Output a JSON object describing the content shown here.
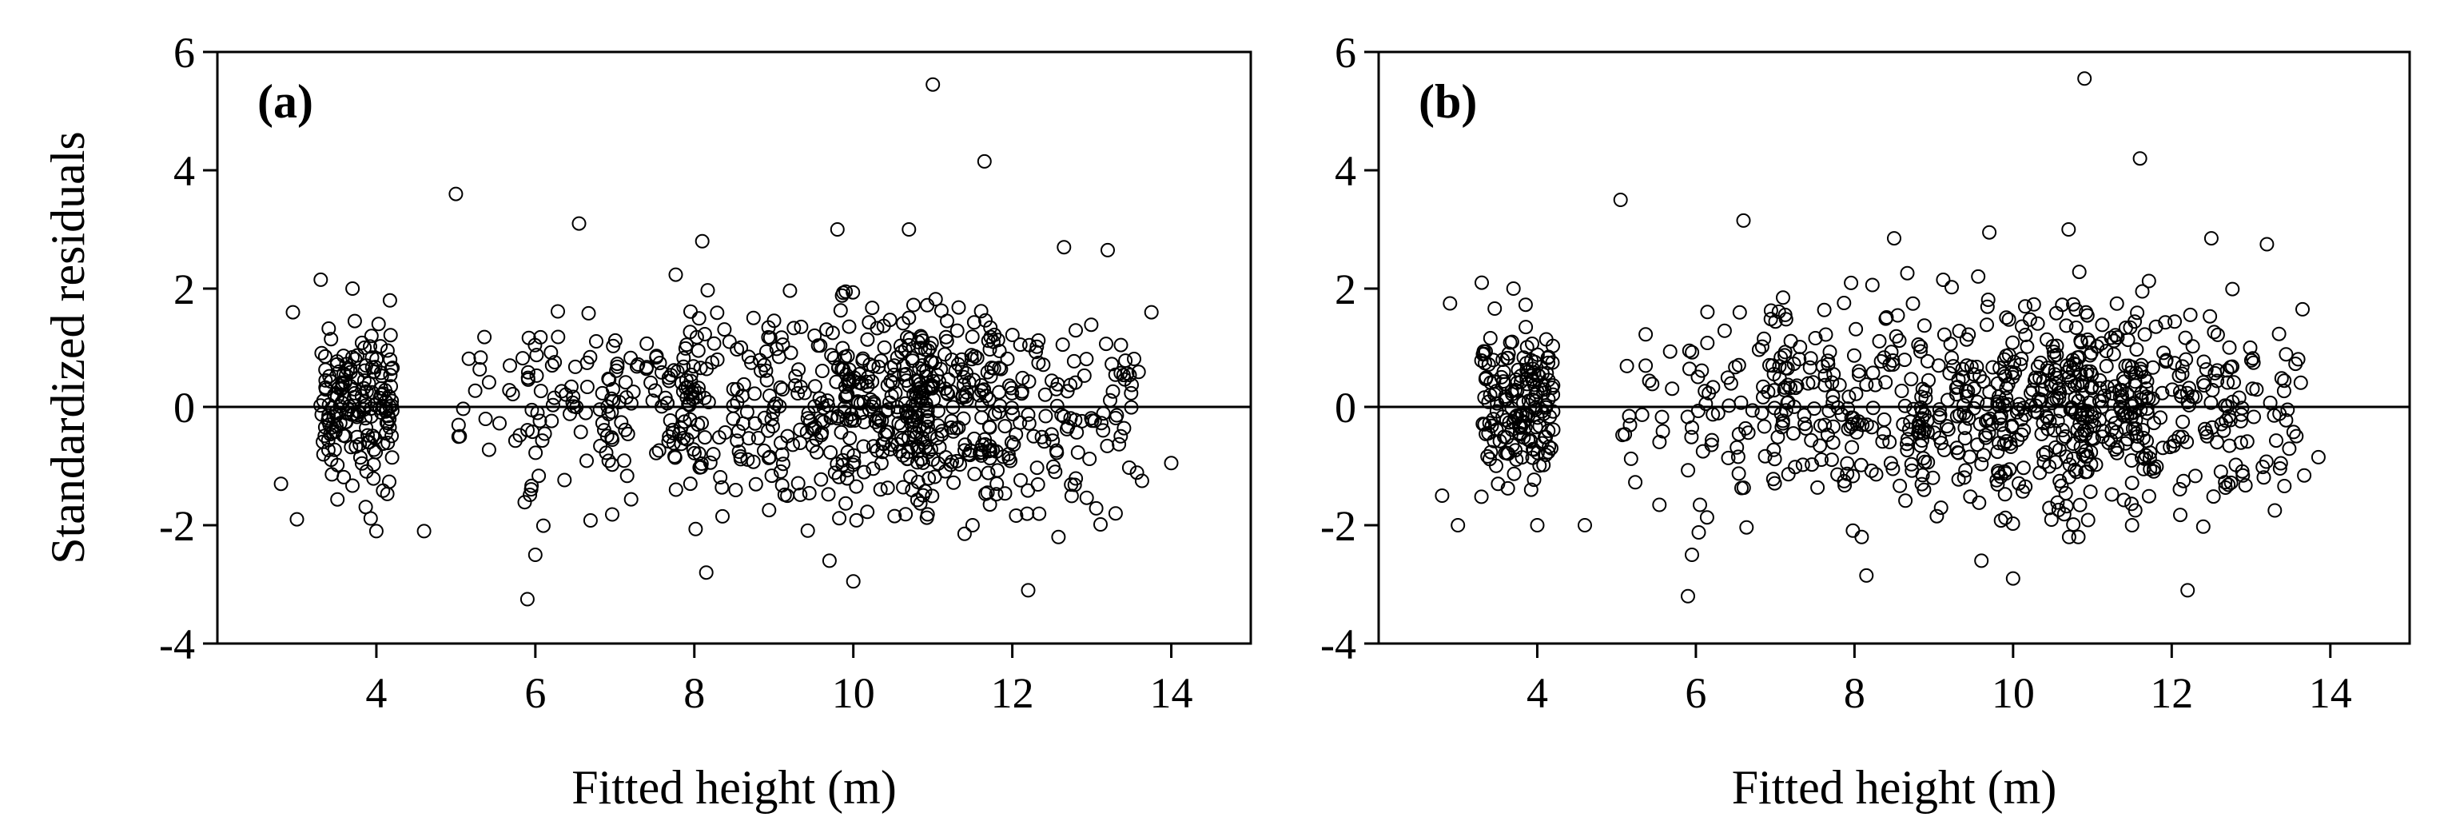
{
  "chart_data": [
    {
      "type": "scatter",
      "panel_label": "(a)",
      "xlabel": "Fitted height (m)",
      "ylabel": "Standardized  residuals",
      "xlim": [
        2,
        15
      ],
      "ylim": [
        -4,
        6
      ],
      "xticks": [
        4,
        6,
        8,
        10,
        12,
        14
      ],
      "yticks": [
        -4,
        -2,
        0,
        2,
        4,
        6
      ],
      "xtick_labels": [
        "4",
        "6",
        "8",
        "10",
        "12",
        "14"
      ],
      "ytick_labels": [
        "-4",
        "-2",
        "0",
        "2",
        "4",
        "6"
      ],
      "reference_line_y": 0,
      "marker": "open-circle",
      "notable_points": [
        {
          "x": 11.0,
          "y": 5.45
        },
        {
          "x": 11.65,
          "y": 4.15
        },
        {
          "x": 5.0,
          "y": 3.6
        },
        {
          "x": 6.55,
          "y": 3.1
        },
        {
          "x": 10.7,
          "y": 3.0
        },
        {
          "x": 9.8,
          "y": 3.0
        },
        {
          "x": 8.1,
          "y": 2.8
        },
        {
          "x": 12.65,
          "y": 2.7
        },
        {
          "x": 13.2,
          "y": 2.65
        },
        {
          "x": 5.9,
          "y": -3.25
        },
        {
          "x": 12.2,
          "y": -3.1
        },
        {
          "x": 10.0,
          "y": -2.95
        },
        {
          "x": 8.15,
          "y": -2.8
        },
        {
          "x": 6.0,
          "y": -2.5
        },
        {
          "x": 4.0,
          "y": -2.1
        },
        {
          "x": 3.0,
          "y": -1.9
        },
        {
          "x": 2.8,
          "y": -1.3
        },
        {
          "x": 14.0,
          "y": -0.95
        },
        {
          "x": 3.3,
          "y": 2.15
        },
        {
          "x": 3.7,
          "y": 2.0
        },
        {
          "x": 2.95,
          "y": 1.6
        },
        {
          "x": 4.6,
          "y": -2.1
        },
        {
          "x": 9.7,
          "y": -2.6
        },
        {
          "x": 11.5,
          "y": -2.0
        },
        {
          "x": 13.3,
          "y": -1.8
        },
        {
          "x": 13.75,
          "y": 1.6
        }
      ],
      "clusters": [
        {
          "x_center": 3.75,
          "x_spread": 0.38,
          "y_sd": 0.65,
          "n": 170
        },
        {
          "x_center": 5.5,
          "x_spread": 0.4,
          "y_sd": 0.75,
          "n": 20
        },
        {
          "x_center": 6.5,
          "x_spread": 0.5,
          "y_sd": 0.8,
          "n": 60
        },
        {
          "x_center": 7.5,
          "x_spread": 0.5,
          "y_sd": 0.8,
          "n": 90
        },
        {
          "x_center": 8.4,
          "x_spread": 0.45,
          "y_sd": 0.9,
          "n": 70
        },
        {
          "x_center": 9.4,
          "x_spread": 0.5,
          "y_sd": 0.9,
          "n": 110
        },
        {
          "x_center": 10.4,
          "x_spread": 0.5,
          "y_sd": 0.85,
          "n": 170
        },
        {
          "x_center": 11.2,
          "x_spread": 0.45,
          "y_sd": 0.85,
          "n": 140
        },
        {
          "x_center": 12.2,
          "x_spread": 0.5,
          "y_sd": 0.9,
          "n": 90
        },
        {
          "x_center": 13.2,
          "x_spread": 0.4,
          "y_sd": 0.85,
          "n": 45
        }
      ],
      "grid": false,
      "legend": "none"
    },
    {
      "type": "scatter",
      "panel_label": "(b)",
      "xlabel": "Fitted height (m)",
      "ylabel": "",
      "xlim": [
        2,
        15
      ],
      "ylim": [
        -4,
        6
      ],
      "xticks": [
        4,
        6,
        8,
        10,
        12,
        14
      ],
      "yticks": [
        -4,
        -2,
        0,
        2,
        4,
        6
      ],
      "xtick_labels": [
        "4",
        "6",
        "8",
        "10",
        "12",
        "14"
      ],
      "ytick_labels": [
        "-4",
        "-2",
        "0",
        "2",
        "4",
        "6"
      ],
      "reference_line_y": 0,
      "marker": "open-circle",
      "notable_points": [
        {
          "x": 10.9,
          "y": 5.55
        },
        {
          "x": 11.6,
          "y": 4.2
        },
        {
          "x": 5.05,
          "y": 3.5
        },
        {
          "x": 6.6,
          "y": 3.15
        },
        {
          "x": 10.7,
          "y": 3.0
        },
        {
          "x": 9.7,
          "y": 2.95
        },
        {
          "x": 8.5,
          "y": 2.85
        },
        {
          "x": 12.5,
          "y": 2.85
        },
        {
          "x": 13.2,
          "y": 2.75
        },
        {
          "x": 5.9,
          "y": -3.2
        },
        {
          "x": 12.2,
          "y": -3.1
        },
        {
          "x": 10.0,
          "y": -2.9
        },
        {
          "x": 8.15,
          "y": -2.85
        },
        {
          "x": 5.95,
          "y": -2.5
        },
        {
          "x": 4.0,
          "y": -2.0
        },
        {
          "x": 3.0,
          "y": -2.0
        },
        {
          "x": 2.8,
          "y": -1.5
        },
        {
          "x": 13.85,
          "y": -0.85
        },
        {
          "x": 3.3,
          "y": 2.1
        },
        {
          "x": 3.7,
          "y": 2.0
        },
        {
          "x": 2.9,
          "y": 1.75
        },
        {
          "x": 4.6,
          "y": -2.0
        },
        {
          "x": 9.6,
          "y": -2.6
        },
        {
          "x": 11.5,
          "y": -2.0
        },
        {
          "x": 13.3,
          "y": -1.75
        },
        {
          "x": 13.65,
          "y": 1.65
        }
      ],
      "clusters": [
        {
          "x_center": 3.75,
          "x_spread": 0.38,
          "y_sd": 0.65,
          "n": 170
        },
        {
          "x_center": 5.5,
          "x_spread": 0.4,
          "y_sd": 0.75,
          "n": 20
        },
        {
          "x_center": 6.5,
          "x_spread": 0.5,
          "y_sd": 0.8,
          "n": 60
        },
        {
          "x_center": 7.5,
          "x_spread": 0.5,
          "y_sd": 0.8,
          "n": 90
        },
        {
          "x_center": 8.4,
          "x_spread": 0.45,
          "y_sd": 0.9,
          "n": 70
        },
        {
          "x_center": 9.4,
          "x_spread": 0.5,
          "y_sd": 0.9,
          "n": 110
        },
        {
          "x_center": 10.4,
          "x_spread": 0.5,
          "y_sd": 0.85,
          "n": 170
        },
        {
          "x_center": 11.2,
          "x_spread": 0.45,
          "y_sd": 0.85,
          "n": 140
        },
        {
          "x_center": 12.2,
          "x_spread": 0.5,
          "y_sd": 0.9,
          "n": 90
        },
        {
          "x_center": 13.2,
          "x_spread": 0.4,
          "y_sd": 0.85,
          "n": 45
        }
      ],
      "grid": false,
      "legend": "none"
    }
  ]
}
